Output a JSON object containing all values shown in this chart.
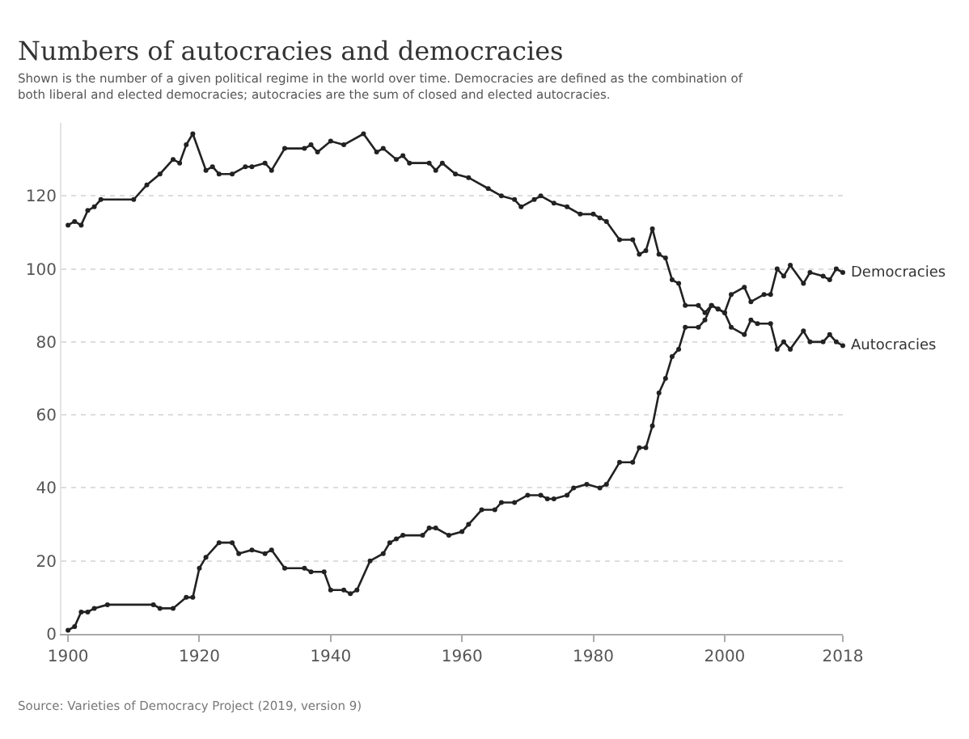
{
  "chart_data": {
    "type": "line",
    "title": "Numbers of autocracies and democracies",
    "subtitle": "Shown is the number of a given political regime in the world over time. Democracies are defined as the combination of both liberal and elected democracies; autocracies are the sum of closed and elected autocracies.",
    "annotations": [
      "Source: Varieties of Democracy Project (2019, version 9)"
    ],
    "series": [
      {
        "name": "Democracies",
        "color": "#222222",
        "x": [
          1900,
          1901,
          1902,
          1903,
          1904,
          1906,
          1913,
          1914,
          1916,
          1918,
          1919,
          1920,
          1921,
          1923,
          1925,
          1926,
          1928,
          1930,
          1931,
          1933,
          1936,
          1937,
          1939,
          1940,
          1942,
          1943,
          1944,
          1946,
          1948,
          1949,
          1950,
          1951,
          1954,
          1955,
          1956,
          1958,
          1960,
          1961,
          1963,
          1965,
          1966,
          1968,
          1970,
          1972,
          1973,
          1974,
          1976,
          1977,
          1979,
          1981,
          1982,
          1984,
          1986,
          1987,
          1988,
          1989,
          1990,
          1991,
          1992,
          1993,
          1994,
          1996,
          1997,
          1998,
          1999,
          2000,
          2001,
          2003,
          2004,
          2006,
          2007,
          2008,
          2009,
          2010,
          2012,
          2013,
          2015,
          2016,
          2017,
          2018
        ],
        "values": [
          1,
          2,
          6,
          6,
          7,
          8,
          8,
          7,
          7,
          10,
          10,
          18,
          21,
          25,
          25,
          22,
          23,
          22,
          23,
          18,
          18,
          17,
          17,
          12,
          12,
          11,
          12,
          20,
          22,
          25,
          26,
          27,
          27,
          29,
          29,
          27,
          28,
          30,
          34,
          34,
          36,
          36,
          38,
          38,
          37,
          37,
          38,
          40,
          41,
          40,
          41,
          47,
          47,
          51,
          51,
          57,
          66,
          70,
          76,
          78,
          84,
          84,
          86,
          90,
          89,
          88,
          93,
          95,
          91,
          93,
          93,
          100,
          98,
          101,
          96,
          99,
          98,
          97,
          100,
          99
        ]
      },
      {
        "name": "Autocracies",
        "color": "#222222",
        "x": [
          1900,
          1901,
          1902,
          1903,
          1904,
          1905,
          1910,
          1912,
          1914,
          1916,
          1917,
          1918,
          1919,
          1921,
          1922,
          1923,
          1925,
          1927,
          1928,
          1930,
          1931,
          1933,
          1936,
          1937,
          1938,
          1940,
          1942,
          1945,
          1947,
          1948,
          1950,
          1951,
          1952,
          1955,
          1956,
          1957,
          1959,
          1961,
          1964,
          1966,
          1968,
          1969,
          1971,
          1972,
          1974,
          1976,
          1978,
          1980,
          1981,
          1982,
          1984,
          1986,
          1987,
          1988,
          1989,
          1990,
          1991,
          1992,
          1993,
          1994,
          1996,
          1997,
          1998,
          1999,
          2000,
          2001,
          2003,
          2004,
          2005,
          2007,
          2008,
          2009,
          2010,
          2012,
          2013,
          2015,
          2016,
          2017,
          2018
        ],
        "values": [
          112,
          113,
          112,
          116,
          117,
          119,
          119,
          123,
          126,
          130,
          129,
          134,
          137,
          127,
          128,
          126,
          126,
          128,
          128,
          129,
          127,
          133,
          133,
          134,
          132,
          135,
          134,
          137,
          132,
          133,
          130,
          131,
          129,
          129,
          127,
          129,
          126,
          125,
          122,
          120,
          119,
          117,
          119,
          120,
          118,
          117,
          115,
          115,
          114,
          113,
          108,
          108,
          104,
          105,
          111,
          104,
          103,
          97,
          96,
          90,
          90,
          88,
          90,
          89,
          88,
          84,
          82,
          86,
          85,
          85,
          78,
          80,
          78,
          83,
          80,
          80,
          82,
          80,
          79
        ]
      }
    ],
    "xlim": [
      1899,
      2018
    ],
    "xticks": [
      1900,
      1920,
      1940,
      1960,
      1980,
      2000,
      2018
    ],
    "ylim": [
      0,
      140
    ],
    "yticks": [
      0,
      20,
      40,
      60,
      80,
      100,
      120
    ],
    "grid": "y",
    "legend": false,
    "marker": "circle",
    "line_style": "solid"
  }
}
